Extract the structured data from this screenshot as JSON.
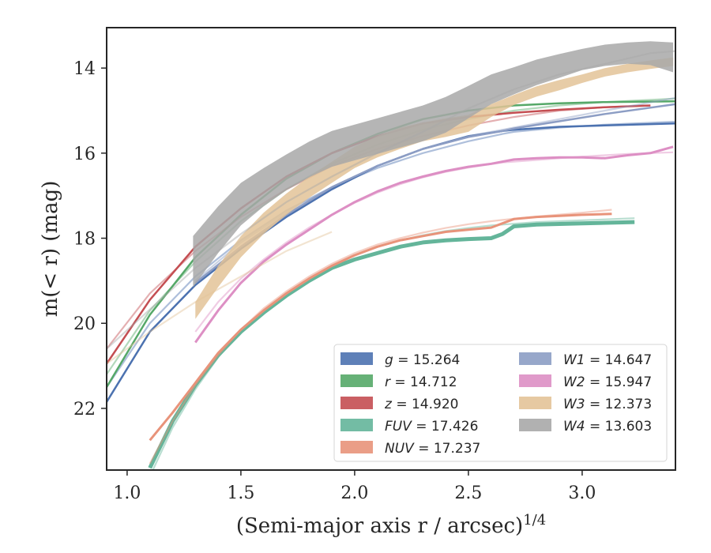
{
  "chart_data": {
    "type": "line",
    "xlabel": "(Semi-major axis r / arcsec)",
    "xlabel_superscript": "1/4",
    "ylabel": "m(< r) (mag)",
    "xlim": [
      0.91,
      3.41
    ],
    "ylim": [
      23.45,
      13.05
    ],
    "y_inverted": true,
    "x_ticks": [
      1.0,
      1.5,
      2.0,
      2.5,
      3.0
    ],
    "x_tick_labels": [
      "1.0",
      "1.5",
      "2.0",
      "2.5",
      "3.0"
    ],
    "y_ticks": [
      14,
      16,
      18,
      20,
      22
    ],
    "y_tick_labels": [
      "14",
      "16",
      "18",
      "20",
      "22"
    ],
    "grid": false,
    "legend_position": "lower-right",
    "series": [
      {
        "name": "g = 15.264",
        "label_var": "g",
        "label_value": "= 15.264",
        "color": "#4c72b0",
        "width": 2.5,
        "x": [
          0.91,
          1.1,
          1.3,
          1.5,
          1.7,
          1.9,
          2.1,
          2.3,
          2.5,
          2.65,
          2.7,
          2.9,
          3.1,
          3.41
        ],
        "y": [
          21.85,
          20.2,
          19.1,
          18.25,
          17.5,
          16.85,
          16.3,
          15.9,
          15.6,
          15.48,
          15.45,
          15.38,
          15.35,
          15.3
        ],
        "model_y": [
          21.5,
          20.0,
          18.9,
          18.05,
          17.35,
          16.8,
          16.35,
          16.0,
          15.72,
          15.55,
          15.5,
          15.4,
          15.33,
          15.26
        ]
      },
      {
        "name": "r = 14.712",
        "label_var": "r",
        "label_value": "= 14.712",
        "color": "#55a868",
        "width": 2.5,
        "x": [
          0.91,
          1.1,
          1.3,
          1.5,
          1.7,
          1.9,
          2.1,
          2.3,
          2.5,
          2.7,
          2.9,
          3.1,
          3.41
        ],
        "y": [
          21.5,
          19.8,
          18.45,
          17.45,
          16.6,
          16.0,
          15.55,
          15.2,
          15.0,
          14.88,
          14.83,
          14.8,
          14.78
        ],
        "model_y": [
          21.2,
          19.7,
          18.55,
          17.6,
          16.85,
          16.25,
          15.8,
          15.45,
          15.2,
          15.0,
          14.88,
          14.8,
          14.72
        ]
      },
      {
        "name": "z = 14.920",
        "label_var": "z",
        "label_value": "= 14.920",
        "color": "#c44e52",
        "width": 2.5,
        "x": [
          0.91,
          1.1,
          1.3,
          1.5,
          1.7,
          1.9,
          2.1,
          2.3,
          2.5,
          2.7,
          2.9,
          3.1,
          3.3
        ],
        "y": [
          20.95,
          19.45,
          18.2,
          17.3,
          16.55,
          16.0,
          15.6,
          15.3,
          15.15,
          15.05,
          14.98,
          14.92,
          14.88
        ],
        "model_y": [
          20.6,
          19.3,
          18.3,
          17.5,
          16.85,
          16.3,
          15.9,
          15.6,
          15.35,
          15.15,
          15.0,
          14.92,
          14.88
        ]
      },
      {
        "name": "FUV = 17.426",
        "label_var": "FUV",
        "label_value": "= 17.426",
        "color": "#64b59a",
        "width": 5,
        "x": [
          1.1,
          1.2,
          1.3,
          1.4,
          1.5,
          1.6,
          1.7,
          1.8,
          1.9,
          2.0,
          2.1,
          2.2,
          2.3,
          2.4,
          2.5,
          2.6,
          2.65,
          2.7,
          2.8,
          3.0,
          3.23
        ],
        "y": [
          23.4,
          22.3,
          21.45,
          20.75,
          20.2,
          19.75,
          19.35,
          19.0,
          18.7,
          18.5,
          18.35,
          18.2,
          18.1,
          18.05,
          18.02,
          18.0,
          17.9,
          17.72,
          17.68,
          17.65,
          17.62
        ],
        "model_y": [
          23.6,
          22.45,
          21.55,
          20.8,
          20.2,
          19.7,
          19.3,
          18.95,
          18.65,
          18.4,
          18.2,
          18.05,
          17.93,
          17.83,
          17.76,
          17.7,
          17.68,
          17.66,
          17.62,
          17.58,
          17.53
        ]
      },
      {
        "name": "NUV = 17.237",
        "label_var": "NUV",
        "label_value": "= 17.237",
        "color": "#e8937a",
        "width": 3,
        "x": [
          1.1,
          1.2,
          1.3,
          1.4,
          1.5,
          1.6,
          1.7,
          1.8,
          1.9,
          2.0,
          2.1,
          2.2,
          2.3,
          2.4,
          2.5,
          2.6,
          2.65,
          2.7,
          2.8,
          3.0,
          3.13
        ],
        "y": [
          22.75,
          22.1,
          21.4,
          20.7,
          20.15,
          19.7,
          19.3,
          18.95,
          18.65,
          18.4,
          18.2,
          18.05,
          17.95,
          17.85,
          17.8,
          17.75,
          17.65,
          17.55,
          17.5,
          17.45,
          17.43
        ],
        "model_y": [
          23.3,
          22.3,
          21.45,
          20.75,
          20.15,
          19.65,
          19.25,
          18.9,
          18.6,
          18.35,
          18.15,
          18.0,
          17.87,
          17.76,
          17.67,
          17.6,
          17.57,
          17.54,
          17.49,
          17.4,
          17.33
        ]
      },
      {
        "name": "W1 = 14.647",
        "label_var": "W1",
        "label_value": "= 14.647",
        "color": "#8c9dc4",
        "width": 2.5,
        "x": [
          1.3,
          1.5,
          1.7,
          1.9,
          2.1,
          2.3,
          2.5,
          2.65,
          2.7,
          2.9,
          3.1,
          3.41
        ],
        "y": [
          19.05,
          18.2,
          17.45,
          16.8,
          16.3,
          15.9,
          15.62,
          15.48,
          15.42,
          15.25,
          15.08,
          14.85
        ],
        "model_y": [
          19.0,
          18.1,
          17.4,
          16.8,
          16.3,
          15.9,
          15.6,
          15.45,
          15.4,
          15.2,
          15.0,
          14.7
        ]
      },
      {
        "name": "W2 = 15.947",
        "label_var": "W2",
        "label_value": "= 15.947",
        "color": "#dd8fc4",
        "width": 3,
        "x": [
          1.3,
          1.4,
          1.5,
          1.6,
          1.7,
          1.8,
          1.9,
          2.0,
          2.1,
          2.2,
          2.3,
          2.4,
          2.5,
          2.6,
          2.65,
          2.7,
          2.8,
          2.9,
          3.0,
          3.1,
          3.2,
          3.3,
          3.4
        ],
        "y": [
          20.45,
          19.7,
          19.05,
          18.55,
          18.15,
          17.8,
          17.45,
          17.15,
          16.9,
          16.7,
          16.55,
          16.42,
          16.32,
          16.25,
          16.2,
          16.15,
          16.12,
          16.1,
          16.1,
          16.12,
          16.05,
          16.0,
          15.85
        ],
        "model_y": [
          20.2,
          19.5,
          18.95,
          18.5,
          18.1,
          17.75,
          17.45,
          17.17,
          16.93,
          16.73,
          16.57,
          16.44,
          16.34,
          16.26,
          16.22,
          16.2,
          16.16,
          16.12,
          16.08,
          16.05,
          16.02,
          16.0,
          15.98
        ]
      },
      {
        "name": "W3 = 12.373",
        "label_var": "W3",
        "label_value": "= 12.373",
        "color": "#e3c398",
        "width": 3,
        "x": [
          1.3,
          1.4,
          1.5,
          1.6,
          1.7,
          1.8,
          1.9,
          2.0,
          2.1,
          2.2,
          2.3,
          2.4,
          2.5,
          2.6,
          2.7,
          2.8,
          2.9,
          3.0,
          3.1,
          3.2,
          3.3,
          3.4
        ],
        "y": [
          19.7,
          18.9,
          18.2,
          17.65,
          17.2,
          16.8,
          16.45,
          16.1,
          15.85,
          15.65,
          15.5,
          15.4,
          15.3,
          15.0,
          14.75,
          14.55,
          14.4,
          14.25,
          14.1,
          14.0,
          13.92,
          13.85
        ],
        "band": [
          0.2,
          0.25,
          0.25,
          0.25,
          0.25,
          0.25,
          0.25,
          0.25,
          0.25,
          0.25,
          0.22,
          0.22,
          0.2,
          0.15,
          0.12,
          0.12,
          0.12,
          0.1,
          0.1,
          0.1,
          0.1,
          0.1
        ],
        "model_x": [
          0.91,
          1.1,
          1.3,
          1.5,
          1.7,
          1.9
        ],
        "model_y": [
          20.95,
          20.2,
          19.5,
          18.9,
          18.3,
          17.85
        ]
      },
      {
        "name": "W4 = 13.603",
        "label_var": "W4",
        "label_value": "= 13.603",
        "color": "#a8a8a8",
        "width": 3,
        "x": [
          1.29,
          1.4,
          1.5,
          1.6,
          1.7,
          1.8,
          1.9,
          2.0,
          2.1,
          2.2,
          2.3,
          2.4,
          2.5,
          2.6,
          2.7,
          2.8,
          2.9,
          3.0,
          3.1,
          3.2,
          3.3,
          3.4
        ],
        "y": [
          18.55,
          17.8,
          17.2,
          16.8,
          16.45,
          16.15,
          15.9,
          15.75,
          15.6,
          15.45,
          15.3,
          15.1,
          14.8,
          14.5,
          14.3,
          14.1,
          13.95,
          13.8,
          13.7,
          13.65,
          13.65,
          13.75
        ],
        "band": [
          0.6,
          0.55,
          0.5,
          0.45,
          0.42,
          0.42,
          0.42,
          0.42,
          0.42,
          0.42,
          0.42,
          0.42,
          0.38,
          0.35,
          0.32,
          0.3,
          0.28,
          0.25,
          0.25,
          0.25,
          0.28,
          0.35
        ],
        "model_x": [
          0.91,
          1.3,
          1.5,
          1.7,
          1.9,
          2.1,
          2.3,
          2.5,
          2.7,
          2.9,
          3.1,
          3.3,
          3.41
        ],
        "model_y": [
          20.6,
          18.7,
          17.9,
          17.15,
          16.55,
          16.0,
          15.5,
          14.95,
          14.5,
          14.15,
          13.9,
          13.65,
          13.6
        ]
      }
    ]
  }
}
